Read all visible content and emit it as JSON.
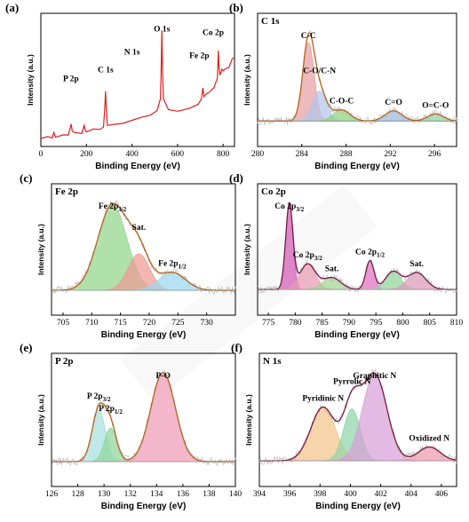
{
  "chart_data": [
    {
      "id": "a",
      "panel_letter": "(a)",
      "type": "line",
      "title": "",
      "xlabel": "Binding Energy (eV)",
      "ylabel": "Intensity (a.u.)",
      "xlim": [
        0,
        850
      ],
      "xticks": [
        0,
        200,
        400,
        600,
        800
      ],
      "line_color": "#e01f1f",
      "annotations": [
        {
          "text": "P 2p",
          "x": 132
        },
        {
          "text": "C 1s",
          "x": 284
        },
        {
          "text": "N 1s",
          "x": 400
        },
        {
          "text": "O 1s",
          "x": 531
        },
        {
          "text": "Fe 2p",
          "x": 711
        },
        {
          "text": "Co 2p",
          "x": 780
        }
      ],
      "x": [
        0,
        30,
        50,
        57,
        64,
        80,
        100,
        120,
        128,
        133,
        138,
        150,
        180,
        190,
        195,
        200,
        230,
        260,
        275,
        281,
        284,
        287,
        292,
        320,
        360,
        400,
        440,
        480,
        510,
        525,
        528,
        531,
        534,
        538,
        560,
        600,
        650,
        690,
        705,
        711,
        716,
        724,
        740,
        760,
        775,
        779,
        782,
        786,
        795,
        800,
        810,
        825,
        840,
        850
      ],
      "y": [
        1,
        2,
        3,
        8,
        3,
        4,
        5,
        6,
        13,
        18,
        8,
        7,
        8,
        15,
        10,
        9,
        11,
        12,
        14,
        40,
        56,
        38,
        16,
        18,
        20,
        23,
        26,
        30,
        35,
        48,
        78,
        128,
        80,
        48,
        36,
        33,
        35,
        40,
        48,
        60,
        50,
        52,
        56,
        62,
        72,
        104,
        86,
        76,
        84,
        82,
        84,
        86,
        94,
        97
      ]
    },
    {
      "id": "b",
      "panel_letter": "(b)",
      "title": "C 1s",
      "type": "area",
      "xlabel": "Binding Energy (eV)",
      "ylabel": "Intensity (a.u.)",
      "xlim": [
        280,
        298
      ],
      "xticks": [
        280,
        284,
        288,
        292,
        296
      ],
      "envelope_color": "#b5651d",
      "baseline": 3,
      "components": [
        {
          "name": "C-C",
          "center": 284.6,
          "height": 100,
          "fwhm": 1.2,
          "color": "#e8a0a4"
        },
        {
          "name": "C-O/C-N",
          "center": 285.6,
          "height": 38,
          "fwhm": 1.5,
          "color": "#b3c6ea"
        },
        {
          "name": "C-O-C",
          "center": 287.6,
          "height": 14,
          "fwhm": 1.8,
          "color": "#8fd17a"
        },
        {
          "name": "C=O",
          "center": 292.3,
          "height": 13,
          "fwhm": 1.8,
          "color": "#9fb6e0"
        },
        {
          "name": "O=C-O",
          "center": 296.1,
          "height": 9,
          "fwhm": 1.7,
          "color": "#8fd1a4"
        }
      ]
    },
    {
      "id": "c",
      "panel_letter": "(c)",
      "title": "Fe 2p",
      "type": "area",
      "xlabel": "Binding Energy (eV)",
      "ylabel": "Intensity (a.u.)",
      "xlim": [
        703,
        735
      ],
      "xticks": [
        705,
        710,
        715,
        720,
        725,
        730
      ],
      "envelope_color": "#b5651d",
      "baseline": 2,
      "components": [
        {
          "name": "Fe 2p3/2",
          "center": 713.6,
          "height": 100,
          "fwhm": 6.0,
          "color": "#92d68a"
        },
        {
          "name": "Sat.",
          "center": 718.2,
          "height": 43,
          "fwhm": 4.4,
          "color": "#ee9a94"
        },
        {
          "name": "Fe 2p1/2",
          "center": 724.0,
          "height": 21,
          "fwhm": 5.5,
          "color": "#9ad8ee"
        }
      ]
    },
    {
      "id": "d",
      "panel_letter": "(d)",
      "title": "Co 2p",
      "type": "area",
      "xlabel": "Binding Energy (eV)",
      "ylabel": "Intensity (a.u.)",
      "xlim": [
        773,
        810
      ],
      "xticks": [
        775,
        780,
        785,
        790,
        795,
        800,
        805,
        810
      ],
      "envelope_color": "#7a1a4a",
      "baseline": 3,
      "components": [
        {
          "name": "Co 2p3/2",
          "center": 778.9,
          "height": 100,
          "fwhm": 1.6,
          "color": "#d45bb6"
        },
        {
          "name": "Co 2p3/2",
          "center": 782.3,
          "height": 30,
          "fwhm": 3.4,
          "color": "#e89ab0"
        },
        {
          "name": "Sat.",
          "center": 786.8,
          "height": 14,
          "fwhm": 4.0,
          "color": "#9fd68f"
        },
        {
          "name": "Co 2p1/2",
          "center": 793.9,
          "height": 34,
          "fwhm": 1.8,
          "color": "#e070c0"
        },
        {
          "name": "Co 2p1/2",
          "center": 798.2,
          "height": 21,
          "fwhm": 3.4,
          "color": "#8fd69a"
        },
        {
          "name": "Sat.",
          "center": 802.6,
          "height": 20,
          "fwhm": 4.0,
          "color": "#d99ab6"
        }
      ],
      "labels": [
        {
          "text": "Co 2p",
          "sub": "3/2",
          "peak": 0
        },
        {
          "text": "Co 2p",
          "sub": "3/2",
          "peak": 1
        },
        {
          "text": "Sat.",
          "sub": "",
          "peak": 2
        },
        {
          "text": "Co 2p",
          "sub": "1/2",
          "peak": 3
        },
        {
          "text": "Sat.",
          "sub": "",
          "peak": 5
        }
      ]
    },
    {
      "id": "e",
      "panel_letter": "(e)",
      "title": "P 2p",
      "type": "area",
      "xlabel": "Binding Energy (eV)",
      "ylabel": "Intensity (a.u.)",
      "xlim": [
        126,
        140
      ],
      "xticks": [
        126,
        128,
        130,
        132,
        134,
        136,
        138,
        140
      ],
      "envelope_color": "#b5651d",
      "baseline": 2,
      "components": [
        {
          "name": "P 2p3/2",
          "center": 129.6,
          "height": 58,
          "fwhm": 1.2,
          "color": "#a6e0df"
        },
        {
          "name": "P 2p1/2",
          "center": 130.5,
          "height": 38,
          "fwhm": 1.1,
          "color": "#8fd69a"
        },
        {
          "name": "P-O",
          "center": 134.5,
          "height": 100,
          "fwhm": 2.2,
          "color": "#ee9ab6"
        }
      ]
    },
    {
      "id": "f",
      "panel_letter": "(f)",
      "title": "N 1s",
      "type": "area",
      "xlabel": "Binding Energy (eV)",
      "ylabel": "Intensity (a.u.)",
      "xlim": [
        394,
        407
      ],
      "xticks": [
        394,
        396,
        398,
        400,
        402,
        404,
        406
      ],
      "envelope_color": "#7a1a3a",
      "baseline": 3,
      "components": [
        {
          "name": "Pyridinic N",
          "center": 398.2,
          "height": 62,
          "fwhm": 1.9,
          "color": "#f2c58a"
        },
        {
          "name": "Pyrrolic N",
          "center": 400.1,
          "height": 60,
          "fwhm": 1.3,
          "color": "#8fd6a8"
        },
        {
          "name": "Graphitic N",
          "center": 401.6,
          "height": 100,
          "fwhm": 1.9,
          "color": "#d8a0d8"
        },
        {
          "name": "Oxidized N",
          "center": 405.2,
          "height": 16,
          "fwhm": 1.7,
          "color": "#ee9ab0"
        }
      ]
    }
  ]
}
